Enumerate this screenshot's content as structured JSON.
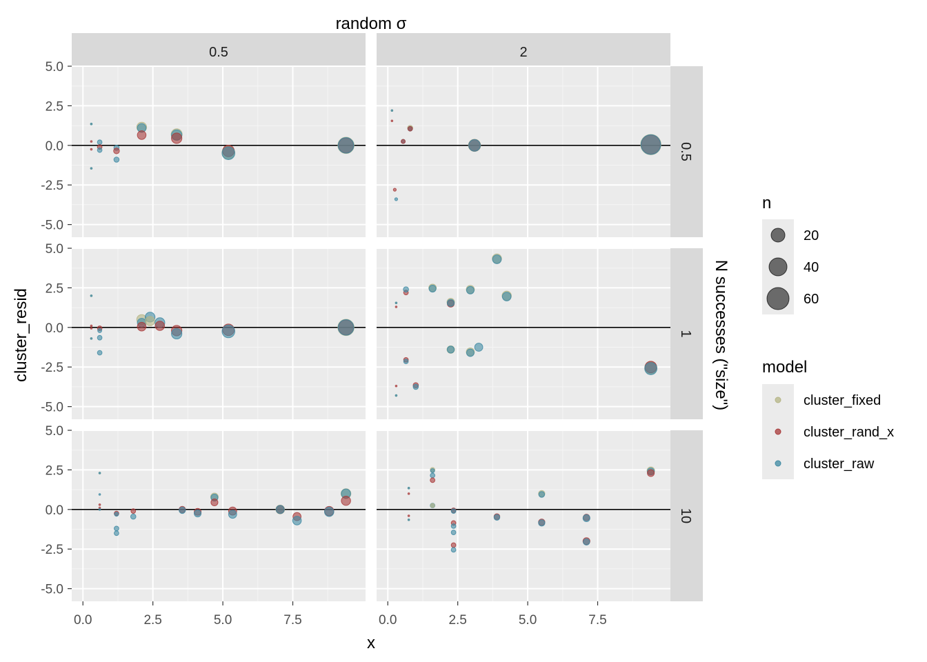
{
  "chart_data": {
    "type": "scatter",
    "top_title": "random σ",
    "xlabel": "x",
    "ylabel": "cluster_resid",
    "right_title": "N successes (\"size\")",
    "col_facets": [
      "0.5",
      "2"
    ],
    "row_facets": [
      "0.5",
      "1",
      "10"
    ],
    "xlim": [
      -0.4,
      10.1
    ],
    "ylim": [
      -5.8,
      5.0
    ],
    "x_ticks": [
      0,
      2.5,
      5,
      7.5
    ],
    "x_tick_labels": [
      "0.0",
      "2.5",
      "5.0",
      "7.5"
    ],
    "y_ticks": [
      -5,
      -2.5,
      0,
      2.5,
      5
    ],
    "y_tick_labels": [
      "-5.0",
      "-2.5",
      "0.0",
      "2.5",
      "5.0"
    ],
    "hline_y": 0,
    "legend_size": {
      "title": "n",
      "entries": [
        {
          "label": "20",
          "value": 20
        },
        {
          "label": "40",
          "value": 40
        },
        {
          "label": "60",
          "value": 60
        }
      ]
    },
    "legend_color": {
      "title": "model",
      "entries": [
        {
          "label": "cluster_fixed",
          "color": "#b5b585"
        },
        {
          "label": "cluster_rand_x",
          "color": "#a83a3a"
        },
        {
          "label": "cluster_raw",
          "color": "#3f8aa3"
        }
      ]
    },
    "colors": {
      "cluster_fixed": "#b5b585",
      "cluster_rand_x": "#a83a3a",
      "cluster_raw": "#3f8aa3"
    },
    "panels": [
      {
        "row": 0,
        "col": 0,
        "points": [
          [
            0.3,
            1.35,
            3,
            "cluster_fixed"
          ],
          [
            0.3,
            1.35,
            3,
            "cluster_raw"
          ],
          [
            0.3,
            0.25,
            3,
            "cluster_rand_x"
          ],
          [
            0.3,
            -0.25,
            3,
            "cluster_rand_x"
          ],
          [
            0.3,
            -1.45,
            3,
            "cluster_fixed"
          ],
          [
            0.3,
            -1.45,
            3,
            "cluster_raw"
          ],
          [
            0.6,
            0.2,
            8,
            "cluster_raw"
          ],
          [
            0.6,
            -0.1,
            8,
            "cluster_rand_x"
          ],
          [
            0.6,
            -0.3,
            8,
            "cluster_raw"
          ],
          [
            1.2,
            -0.15,
            9,
            "cluster_raw"
          ],
          [
            1.2,
            -0.35,
            10,
            "cluster_rand_x"
          ],
          [
            1.2,
            -0.9,
            9,
            "cluster_raw"
          ],
          [
            2.1,
            1.15,
            17,
            "cluster_fixed"
          ],
          [
            2.1,
            1.1,
            15,
            "cluster_raw"
          ],
          [
            2.1,
            0.65,
            15,
            "cluster_rand_x"
          ],
          [
            3.35,
            0.7,
            19,
            "cluster_fixed"
          ],
          [
            3.35,
            0.65,
            18,
            "cluster_raw"
          ],
          [
            3.35,
            0.45,
            18,
            "cluster_rand_x"
          ],
          [
            5.2,
            -0.45,
            22,
            "cluster_fixed"
          ],
          [
            5.2,
            -0.35,
            20,
            "cluster_rand_x"
          ],
          [
            5.2,
            -0.5,
            22,
            "cluster_raw"
          ],
          [
            9.4,
            0.0,
            28,
            "cluster_fixed"
          ],
          [
            9.4,
            0.0,
            26,
            "cluster_rand_x"
          ],
          [
            9.4,
            0.0,
            27,
            "cluster_raw"
          ]
        ]
      },
      {
        "row": 0,
        "col": 1,
        "points": [
          [
            0.15,
            2.2,
            3,
            "cluster_fixed"
          ],
          [
            0.15,
            2.2,
            3,
            "cluster_raw"
          ],
          [
            0.15,
            1.55,
            3,
            "cluster_rand_x"
          ],
          [
            0.25,
            -2.8,
            5,
            "cluster_rand_x"
          ],
          [
            0.3,
            -3.4,
            5,
            "cluster_raw"
          ],
          [
            0.55,
            0.25,
            7,
            "cluster_raw"
          ],
          [
            0.55,
            0.25,
            7,
            "cluster_rand_x"
          ],
          [
            0.8,
            1.1,
            9,
            "cluster_fixed"
          ],
          [
            0.8,
            1.05,
            8,
            "cluster_raw"
          ],
          [
            0.8,
            1.05,
            8,
            "cluster_rand_x"
          ],
          [
            3.1,
            0.0,
            21,
            "cluster_fixed"
          ],
          [
            3.1,
            0.0,
            20,
            "cluster_rand_x"
          ],
          [
            3.1,
            0.0,
            20,
            "cluster_raw"
          ],
          [
            9.4,
            0.05,
            35,
            "cluster_fixed"
          ],
          [
            9.4,
            0.05,
            33,
            "cluster_rand_x"
          ],
          [
            9.4,
            0.05,
            34,
            "cluster_raw"
          ]
        ]
      },
      {
        "row": 1,
        "col": 0,
        "points": [
          [
            0.3,
            2.0,
            3,
            "cluster_fixed"
          ],
          [
            0.3,
            2.0,
            3,
            "cluster_raw"
          ],
          [
            0.3,
            0.1,
            3,
            "cluster_rand_x"
          ],
          [
            0.3,
            -0.05,
            3,
            "cluster_rand_x"
          ],
          [
            0.3,
            -0.7,
            3,
            "cluster_fixed"
          ],
          [
            0.3,
            -0.7,
            3,
            "cluster_raw"
          ],
          [
            0.6,
            -0.05,
            8,
            "cluster_rand_x"
          ],
          [
            0.6,
            -0.2,
            7,
            "cluster_raw"
          ],
          [
            0.6,
            -0.65,
            8,
            "cluster_raw"
          ],
          [
            0.6,
            -1.6,
            8,
            "cluster_raw"
          ],
          [
            2.1,
            0.5,
            17,
            "cluster_fixed"
          ],
          [
            2.1,
            0.3,
            15,
            "cluster_raw"
          ],
          [
            2.1,
            0.05,
            15,
            "cluster_rand_x"
          ],
          [
            2.4,
            0.65,
            17,
            "cluster_raw"
          ],
          [
            2.4,
            0.4,
            16,
            "cluster_fixed"
          ],
          [
            2.75,
            0.3,
            17,
            "cluster_raw"
          ],
          [
            2.75,
            0.1,
            16,
            "cluster_rand_x"
          ],
          [
            3.35,
            -0.2,
            18,
            "cluster_rand_x"
          ],
          [
            3.35,
            -0.4,
            18,
            "cluster_raw"
          ],
          [
            5.2,
            -0.15,
            20,
            "cluster_rand_x"
          ],
          [
            5.2,
            -0.25,
            22,
            "cluster_raw"
          ],
          [
            9.4,
            0.0,
            28,
            "cluster_fixed"
          ],
          [
            9.4,
            0.0,
            26,
            "cluster_rand_x"
          ],
          [
            9.4,
            0.0,
            27,
            "cluster_raw"
          ]
        ]
      },
      {
        "row": 1,
        "col": 1,
        "points": [
          [
            0.3,
            1.55,
            3,
            "cluster_fixed"
          ],
          [
            0.3,
            1.55,
            3,
            "cluster_raw"
          ],
          [
            0.3,
            1.3,
            3,
            "cluster_rand_x"
          ],
          [
            0.3,
            -3.7,
            3,
            "cluster_rand_x"
          ],
          [
            0.3,
            -4.3,
            3,
            "cluster_fixed"
          ],
          [
            0.3,
            -4.3,
            3,
            "cluster_raw"
          ],
          [
            0.65,
            2.2,
            8,
            "cluster_rand_x"
          ],
          [
            0.65,
            2.4,
            9,
            "cluster_raw"
          ],
          [
            0.65,
            -2.05,
            8,
            "cluster_rand_x"
          ],
          [
            0.65,
            -2.15,
            8,
            "cluster_raw"
          ],
          [
            1.0,
            -3.65,
            9,
            "cluster_rand_x"
          ],
          [
            1.0,
            -3.75,
            9,
            "cluster_raw"
          ],
          [
            1.6,
            2.5,
            13,
            "cluster_fixed"
          ],
          [
            1.6,
            2.45,
            12,
            "cluster_raw"
          ],
          [
            2.25,
            1.6,
            13,
            "cluster_fixed"
          ],
          [
            2.25,
            1.5,
            12,
            "cluster_rand_x"
          ],
          [
            2.25,
            1.55,
            12,
            "cluster_raw"
          ],
          [
            2.25,
            -1.4,
            13,
            "cluster_fixed"
          ],
          [
            2.25,
            -1.4,
            12,
            "cluster_raw"
          ],
          [
            2.95,
            2.4,
            14,
            "cluster_fixed"
          ],
          [
            2.95,
            2.35,
            13,
            "cluster_raw"
          ],
          [
            2.95,
            -1.55,
            14,
            "cluster_fixed"
          ],
          [
            2.95,
            -1.6,
            13,
            "cluster_raw"
          ],
          [
            3.25,
            -1.25,
            14,
            "cluster_raw"
          ],
          [
            3.9,
            4.35,
            16,
            "cluster_fixed"
          ],
          [
            3.9,
            4.3,
            15,
            "cluster_raw"
          ],
          [
            4.25,
            2.0,
            16,
            "cluster_fixed"
          ],
          [
            4.25,
            1.95,
            15,
            "cluster_raw"
          ],
          [
            9.4,
            -2.55,
            21,
            "cluster_fixed"
          ],
          [
            9.4,
            -2.5,
            20,
            "cluster_rand_x"
          ],
          [
            9.4,
            -2.6,
            21,
            "cluster_raw"
          ]
        ]
      },
      {
        "row": 2,
        "col": 0,
        "points": [
          [
            0.6,
            2.3,
            3,
            "cluster_fixed"
          ],
          [
            0.6,
            2.3,
            3,
            "cluster_raw"
          ],
          [
            0.6,
            0.95,
            3,
            "cluster_raw"
          ],
          [
            0.6,
            0.3,
            3,
            "cluster_rand_x"
          ],
          [
            0.6,
            0.1,
            3,
            "cluster_rand_x"
          ],
          [
            0.6,
            0.0,
            3,
            "cluster_raw"
          ],
          [
            1.2,
            -0.25,
            8,
            "cluster_rand_x"
          ],
          [
            1.2,
            -0.3,
            7,
            "cluster_raw"
          ],
          [
            1.2,
            -1.2,
            8,
            "cluster_raw"
          ],
          [
            1.2,
            -1.5,
            8,
            "cluster_raw"
          ],
          [
            1.8,
            -0.1,
            8,
            "cluster_rand_x"
          ],
          [
            1.8,
            -0.45,
            9,
            "cluster_raw"
          ],
          [
            3.55,
            0.0,
            11,
            "cluster_rand_x"
          ],
          [
            3.55,
            -0.05,
            11,
            "cluster_raw"
          ],
          [
            4.1,
            -0.15,
            12,
            "cluster_rand_x"
          ],
          [
            4.1,
            -0.25,
            12,
            "cluster_raw"
          ],
          [
            4.7,
            0.8,
            13,
            "cluster_fixed"
          ],
          [
            4.7,
            0.75,
            12,
            "cluster_raw"
          ],
          [
            4.7,
            0.45,
            12,
            "cluster_rand_x"
          ],
          [
            5.35,
            -0.1,
            14,
            "cluster_rand_x"
          ],
          [
            5.35,
            -0.3,
            14,
            "cluster_raw"
          ],
          [
            7.05,
            0.0,
            15,
            "cluster_fixed"
          ],
          [
            7.05,
            0.0,
            14,
            "cluster_rand_x"
          ],
          [
            7.05,
            0.0,
            14,
            "cluster_raw"
          ],
          [
            7.65,
            -0.45,
            14,
            "cluster_rand_x"
          ],
          [
            7.65,
            -0.7,
            15,
            "cluster_raw"
          ],
          [
            8.8,
            -0.1,
            16,
            "cluster_rand_x"
          ],
          [
            8.8,
            -0.15,
            16,
            "cluster_raw"
          ],
          [
            9.4,
            1.0,
            17,
            "cluster_fixed"
          ],
          [
            9.4,
            1.0,
            16,
            "cluster_raw"
          ],
          [
            9.4,
            0.55,
            16,
            "cluster_rand_x"
          ]
        ]
      },
      {
        "row": 2,
        "col": 1,
        "points": [
          [
            0.75,
            1.35,
            3,
            "cluster_fixed"
          ],
          [
            0.75,
            1.35,
            3,
            "cluster_raw"
          ],
          [
            0.75,
            1.0,
            3,
            "cluster_rand_x"
          ],
          [
            0.75,
            -0.4,
            3,
            "cluster_rand_x"
          ],
          [
            0.75,
            -0.65,
            3,
            "cluster_fixed"
          ],
          [
            0.75,
            -0.65,
            3,
            "cluster_raw"
          ],
          [
            1.6,
            2.5,
            8,
            "cluster_fixed"
          ],
          [
            1.6,
            2.45,
            7,
            "cluster_raw"
          ],
          [
            1.6,
            2.15,
            8,
            "cluster_raw"
          ],
          [
            1.6,
            1.85,
            8,
            "cluster_rand_x"
          ],
          [
            1.6,
            0.25,
            8,
            "cluster_raw"
          ],
          [
            1.6,
            0.25,
            7,
            "cluster_fixed"
          ],
          [
            2.35,
            -0.05,
            8,
            "cluster_rand_x"
          ],
          [
            2.35,
            -0.1,
            8,
            "cluster_raw"
          ],
          [
            2.35,
            -0.85,
            8,
            "cluster_rand_x"
          ],
          [
            2.35,
            -1.05,
            8,
            "cluster_raw"
          ],
          [
            2.35,
            -1.45,
            8,
            "cluster_raw"
          ],
          [
            2.35,
            -2.25,
            8,
            "cluster_rand_x"
          ],
          [
            2.35,
            -2.55,
            8,
            "cluster_raw"
          ],
          [
            3.9,
            -0.45,
            10,
            "cluster_rand_x"
          ],
          [
            3.9,
            -0.5,
            10,
            "cluster_raw"
          ],
          [
            5.5,
            1.0,
            11,
            "cluster_fixed"
          ],
          [
            5.5,
            0.95,
            10,
            "cluster_raw"
          ],
          [
            5.5,
            -0.8,
            11,
            "cluster_rand_x"
          ],
          [
            5.5,
            -0.85,
            11,
            "cluster_raw"
          ],
          [
            7.1,
            -0.5,
            11,
            "cluster_rand_x"
          ],
          [
            7.1,
            -0.55,
            12,
            "cluster_raw"
          ],
          [
            7.1,
            -2.0,
            12,
            "cluster_rand_x"
          ],
          [
            7.1,
            -2.05,
            11,
            "cluster_raw"
          ],
          [
            9.4,
            2.45,
            13,
            "cluster_fixed"
          ],
          [
            9.4,
            2.4,
            12,
            "cluster_raw"
          ],
          [
            9.4,
            2.3,
            12,
            "cluster_rand_x"
          ]
        ]
      }
    ]
  }
}
